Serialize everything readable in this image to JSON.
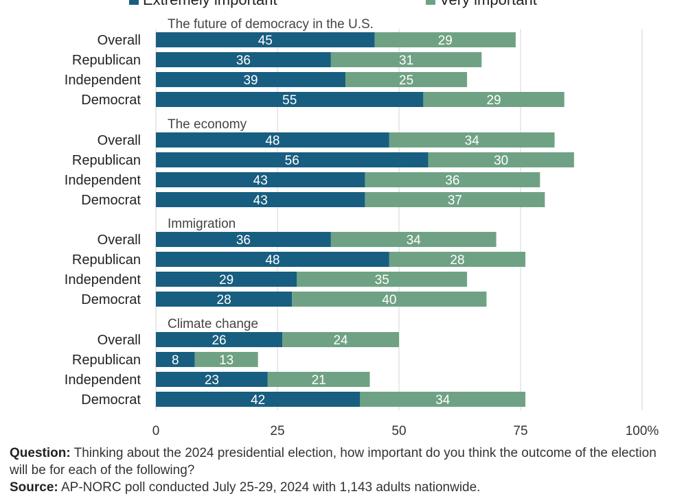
{
  "legend": {
    "extreme_label": "Extremely important",
    "very_label": "Very important"
  },
  "colors": {
    "extreme": "#185e80",
    "very": "#6fa284",
    "grid": "#d4d4d4",
    "axis_text": "#333333"
  },
  "chart_data": {
    "type": "bar",
    "orientation": "horizontal",
    "stacked": true,
    "xlim": [
      0,
      100
    ],
    "xticks": [
      0,
      25,
      50,
      75,
      100
    ],
    "xtick_labels": [
      "0",
      "25",
      "50",
      "75",
      "100%"
    ],
    "grid": true,
    "legend_position": "top",
    "series_names": [
      "Extremely important",
      "Very important"
    ],
    "groups": [
      {
        "title": "The future of democracy in the U.S.",
        "rows": [
          {
            "label": "Overall",
            "extremely": 45,
            "very": 29
          },
          {
            "label": "Republican",
            "extremely": 36,
            "very": 31
          },
          {
            "label": "Independent",
            "extremely": 39,
            "very": 25
          },
          {
            "label": "Democrat",
            "extremely": 55,
            "very": 29
          }
        ]
      },
      {
        "title": "The economy",
        "rows": [
          {
            "label": "Overall",
            "extremely": 48,
            "very": 34
          },
          {
            "label": "Republican",
            "extremely": 56,
            "very": 30
          },
          {
            "label": "Independent",
            "extremely": 43,
            "very": 36
          },
          {
            "label": "Democrat",
            "extremely": 43,
            "very": 37
          }
        ]
      },
      {
        "title": "Immigration",
        "rows": [
          {
            "label": "Overall",
            "extremely": 36,
            "very": 34
          },
          {
            "label": "Republican",
            "extremely": 48,
            "very": 28
          },
          {
            "label": "Independent",
            "extremely": 29,
            "very": 35
          },
          {
            "label": "Democrat",
            "extremely": 28,
            "very": 40
          }
        ]
      },
      {
        "title": "Climate change",
        "rows": [
          {
            "label": "Overall",
            "extremely": 26,
            "very": 24
          },
          {
            "label": "Republican",
            "extremely": 8,
            "very": 13
          },
          {
            "label": "Independent",
            "extremely": 23,
            "very": 21
          },
          {
            "label": "Democrat",
            "extremely": 42,
            "very": 34
          }
        ]
      }
    ]
  },
  "footer": {
    "question_label": "Question:",
    "question_text": "Thinking about the 2024 presidential election, how important do you think the outcome of the election will be for each of the following?",
    "source_label": "Source:",
    "source_text": "AP-NORC poll conducted July 25-29, 2024 with 1,143 adults nationwide."
  }
}
